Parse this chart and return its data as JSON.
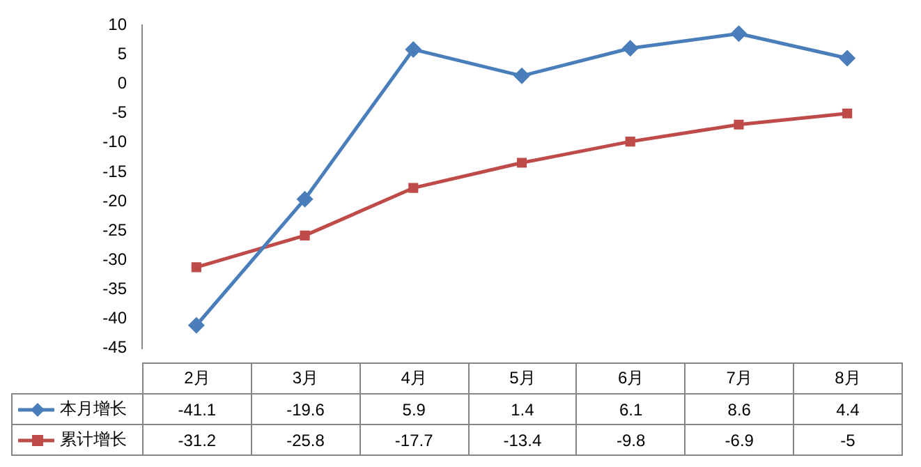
{
  "chart_data": {
    "type": "line",
    "categories": [
      "2月",
      "3月",
      "4月",
      "5月",
      "6月",
      "7月",
      "8月"
    ],
    "series": [
      {
        "name": "本月增长",
        "color": "#4a7ebb",
        "marker": "diamond",
        "values": [
          -41.1,
          -19.6,
          5.9,
          1.4,
          6.1,
          8.6,
          4.4
        ]
      },
      {
        "name": "累计增长",
        "color": "#be4b48",
        "marker": "square",
        "values": [
          -31.2,
          -25.8,
          -17.7,
          -13.4,
          -9.8,
          -6.9,
          -5
        ]
      }
    ],
    "ylim": [
      -45,
      10
    ],
    "yticks": [
      -45,
      -40,
      -35,
      -30,
      -25,
      -20,
      -15,
      -10,
      -5,
      0,
      5,
      10
    ],
    "grid": false,
    "legend": "bottom",
    "data_labels": true,
    "line_style": "solid"
  }
}
